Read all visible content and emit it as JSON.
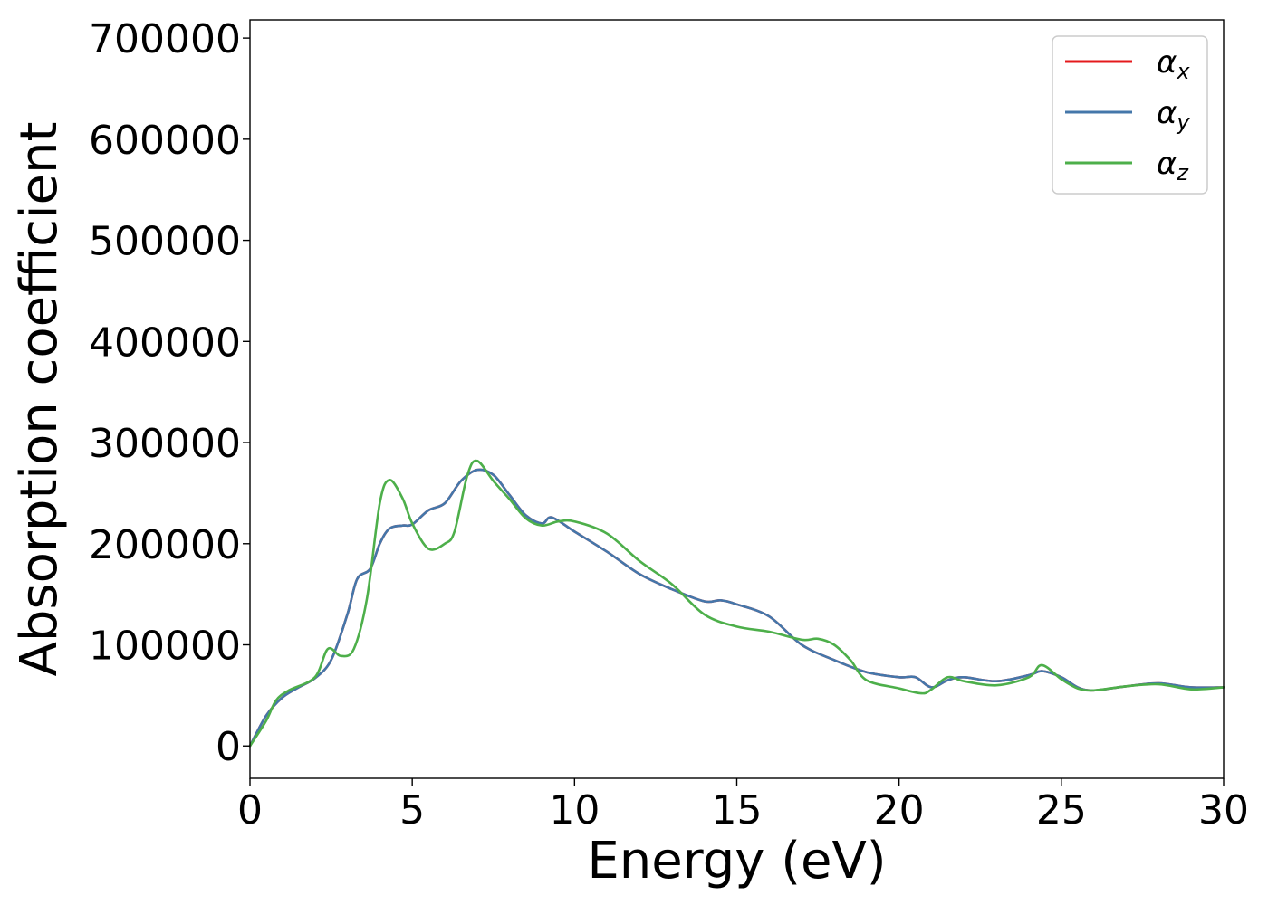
{
  "chart_data": {
    "type": "line",
    "title": "",
    "xlabel": "Energy (eV)",
    "ylabel": "Absorption coefficient",
    "xlim": [
      0,
      30
    ],
    "ylim": [
      -32000,
      718000
    ],
    "x_ticks": [
      0,
      5,
      10,
      15,
      20,
      25,
      30
    ],
    "x_tick_labels": [
      "0",
      "5",
      "10",
      "15",
      "20",
      "25",
      "30"
    ],
    "y_ticks": [
      0,
      100000,
      200000,
      300000,
      400000,
      500000,
      600000,
      700000
    ],
    "y_tick_labels": [
      "0",
      "100000",
      "200000",
      "300000",
      "400000",
      "500000",
      "600000",
      "700000"
    ],
    "grid": false,
    "legend_position": "top-right",
    "series": [
      {
        "name": "α",
        "subscript": "x",
        "color": "#e41a1c",
        "x": [
          0,
          0.5,
          1,
          1.5,
          2,
          2.5,
          3,
          3.3,
          3.7,
          4,
          4.3,
          4.7,
          5,
          5.5,
          6,
          6.5,
          7,
          7.5,
          8,
          8.5,
          9,
          9.3,
          10,
          11,
          12,
          13,
          14,
          14.5,
          15,
          16,
          17,
          18,
          19,
          20,
          20.5,
          21,
          21.5,
          22,
          23,
          24,
          24.4,
          25,
          25.5,
          26,
          27,
          28,
          29,
          30
        ],
        "y": [
          0,
          30000,
          48000,
          58000,
          67000,
          85000,
          130000,
          165000,
          175000,
          200000,
          215000,
          218000,
          219000,
          233000,
          240000,
          262000,
          273000,
          268000,
          248000,
          228000,
          220000,
          226000,
          212000,
          192000,
          170000,
          155000,
          143000,
          144000,
          140000,
          128000,
          100000,
          85000,
          73000,
          68000,
          68000,
          58000,
          65000,
          68000,
          64000,
          70000,
          74000,
          68000,
          58000,
          55000,
          59000,
          62000,
          58000,
          58000
        ]
      },
      {
        "name": "α",
        "subscript": "y",
        "color": "#4477aa",
        "x": [
          0,
          0.5,
          1,
          1.5,
          2,
          2.5,
          3,
          3.3,
          3.7,
          4,
          4.3,
          4.7,
          5,
          5.5,
          6,
          6.5,
          7,
          7.5,
          8,
          8.5,
          9,
          9.3,
          10,
          11,
          12,
          13,
          14,
          14.5,
          15,
          16,
          17,
          18,
          19,
          20,
          20.5,
          21,
          21.5,
          22,
          23,
          24,
          24.4,
          25,
          25.5,
          26,
          27,
          28,
          29,
          30
        ],
        "y": [
          0,
          30000,
          48000,
          58000,
          67000,
          85000,
          130000,
          165000,
          175000,
          200000,
          215000,
          218000,
          219000,
          233000,
          240000,
          262000,
          273000,
          268000,
          248000,
          228000,
          220000,
          226000,
          212000,
          192000,
          170000,
          155000,
          143000,
          144000,
          140000,
          128000,
          100000,
          85000,
          73000,
          68000,
          68000,
          58000,
          65000,
          68000,
          64000,
          70000,
          74000,
          68000,
          58000,
          55000,
          59000,
          62000,
          58000,
          58000
        ]
      },
      {
        "name": "α",
        "subscript": "z",
        "color": "#4daf4a",
        "x": [
          0,
          0.5,
          0.8,
          1.2,
          2,
          2.4,
          2.8,
          3.2,
          3.6,
          4,
          4.3,
          4.7,
          5,
          5.5,
          6,
          6.3,
          6.7,
          7,
          7.5,
          8,
          8.5,
          9,
          9.5,
          10,
          11,
          12,
          13,
          14,
          15,
          16,
          17,
          17.5,
          18,
          18.5,
          19,
          20,
          20.7,
          21,
          21.5,
          22,
          23,
          24,
          24.4,
          25,
          25.5,
          26,
          27,
          28,
          29,
          30
        ],
        "y": [
          0,
          25000,
          45000,
          55000,
          68000,
          96000,
          89000,
          96000,
          145000,
          240000,
          263000,
          245000,
          220000,
          195000,
          200000,
          212000,
          268000,
          282000,
          262000,
          244000,
          225000,
          218000,
          222000,
          222000,
          210000,
          183000,
          160000,
          130000,
          118000,
          113000,
          105000,
          106000,
          100000,
          85000,
          65000,
          57000,
          52000,
          56000,
          68000,
          64000,
          60000,
          68000,
          80000,
          66000,
          57000,
          55000,
          59000,
          61000,
          56000,
          58000
        ]
      }
    ]
  }
}
